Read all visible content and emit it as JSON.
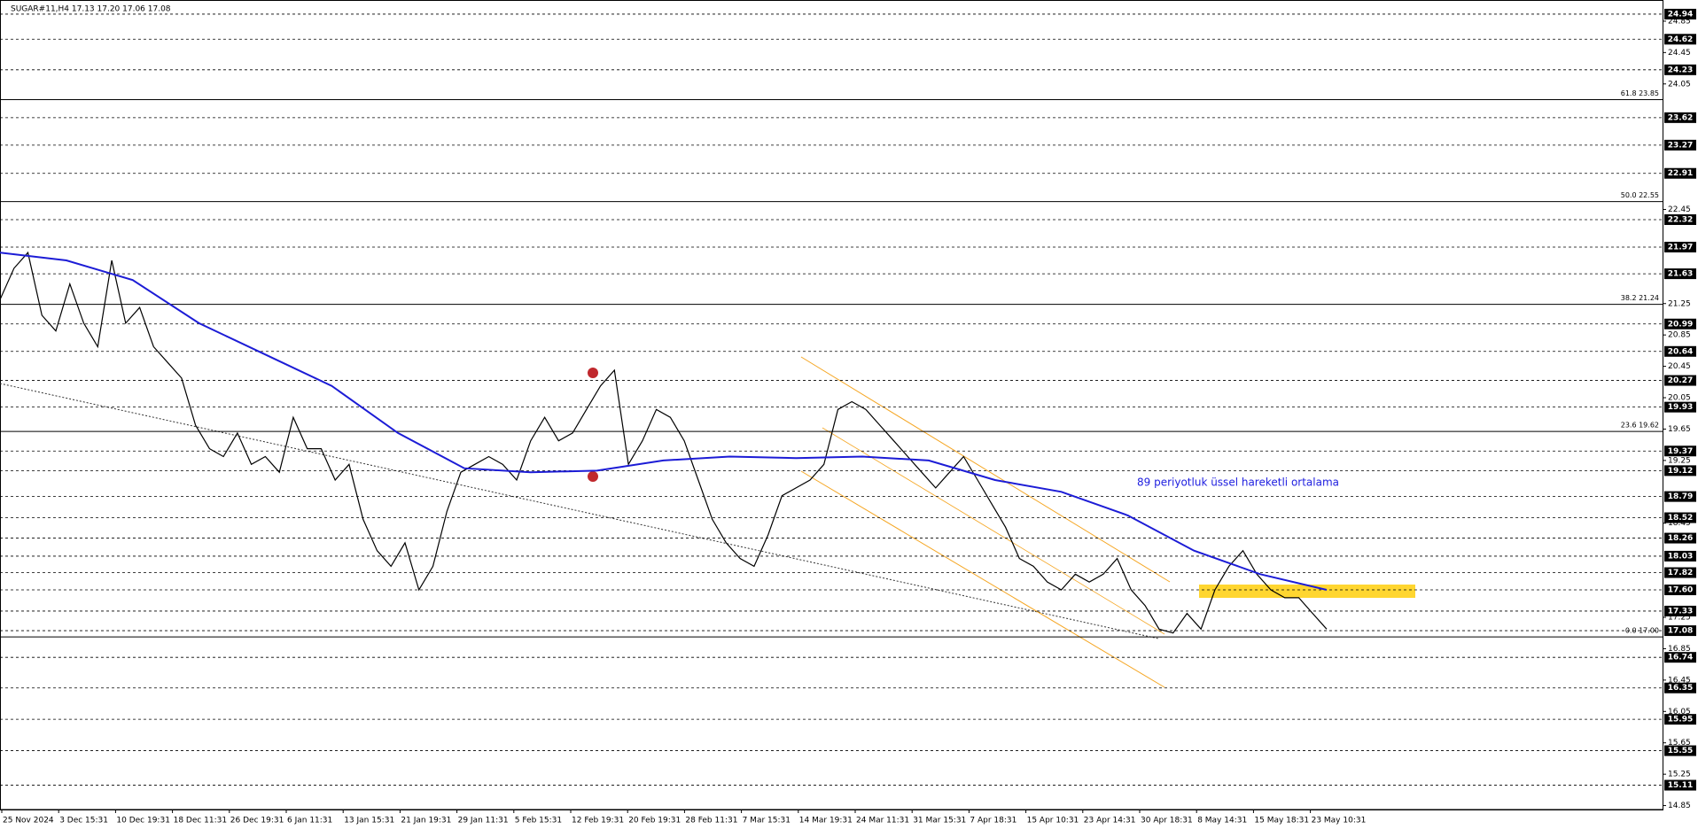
{
  "chart_data": {
    "type": "line",
    "title": "SUGAR#11,H4  17.13 17.20 17.06 17.08",
    "annotation": "89 periyotluk üssel hareketli ortalama",
    "ylim": [
      14.8,
      25.12
    ],
    "yticks": [
      24.85,
      24.45,
      24.05,
      22.45,
      21.25,
      20.85,
      20.45,
      20.05,
      19.65,
      19.25,
      18.45,
      17.25,
      16.85,
      16.45,
      16.05,
      15.65,
      15.25,
      14.85
    ],
    "levels": [
      24.94,
      24.62,
      24.23,
      23.62,
      23.27,
      22.91,
      22.32,
      21.97,
      21.63,
      20.99,
      20.64,
      20.27,
      19.93,
      19.37,
      19.12,
      18.79,
      18.52,
      18.26,
      18.03,
      17.82,
      {
        "value": 17.6,
        "label": "17.60"
      },
      17.33,
      17.08,
      16.74,
      16.35,
      15.95,
      15.55,
      15.11
    ],
    "fib_levels": [
      {
        "value": 23.85,
        "label": "61.8 23.85"
      },
      {
        "value": 22.55,
        "label": "50.0 22.55"
      },
      {
        "value": 21.24,
        "label": "38.2 21.24"
      },
      {
        "value": 19.62,
        "label": "23.6 19.62"
      },
      {
        "value": 17.0,
        "label": "0.0 17.00"
      }
    ],
    "x_labels": [
      "25 Nov 2024",
      "3 Dec 15:31",
      "10 Dec 19:31",
      "18 Dec 11:31",
      "26 Dec 19:31",
      "6 Jan 11:31",
      "13 Jan 15:31",
      "21 Jan 19:31",
      "29 Jan 11:31",
      "5 Feb 15:31",
      "12 Feb 19:31",
      "20 Feb 19:31",
      "28 Feb 11:31",
      "7 Mar 15:31",
      "14 Mar 19:31",
      "24 Mar 11:31",
      "31 Mar 15:31",
      "7 Apr 18:31",
      "15 Apr 10:31",
      "23 Apr 14:31",
      "30 Apr 18:31",
      "8 May 14:31",
      "15 May 18:31",
      "23 May 10:31"
    ],
    "series": [
      {
        "color": "#000000",
        "values": [
          21.3,
          21.7,
          21.9,
          21.1,
          20.9,
          21.5,
          21.0,
          20.7,
          21.8,
          21.0,
          21.2,
          20.7,
          20.5,
          20.3,
          19.7,
          19.4,
          19.3,
          19.6,
          19.2,
          19.3,
          19.1,
          19.8,
          19.4,
          19.4,
          19.0,
          19.2,
          18.5,
          18.1,
          17.9,
          18.2,
          17.6,
          17.9,
          18.6,
          19.1,
          19.2,
          19.3,
          19.2,
          19.0,
          19.5,
          19.8,
          19.5,
          19.6,
          19.9,
          20.2,
          20.4,
          19.2,
          19.5,
          19.9,
          19.8,
          19.5,
          19.0,
          18.5,
          18.2,
          18.0,
          17.9,
          18.3,
          18.8,
          18.9,
          19.0,
          19.2,
          19.9,
          20.0,
          19.9,
          19.7,
          19.5,
          19.3,
          19.1,
          18.9,
          19.1,
          19.3,
          19.0,
          18.7,
          18.4,
          18.0,
          17.9,
          17.7,
          17.6,
          17.8,
          17.7,
          17.8,
          18.0,
          17.6,
          17.4,
          17.1,
          17.05,
          17.3,
          17.1,
          17.6,
          17.9,
          18.1,
          17.8,
          17.6,
          17.5,
          17.5,
          17.3,
          17.1
        ]
      },
      {
        "color": "#1c1cd6",
        "values": [
          21.9,
          21.8,
          21.55,
          21.0,
          20.6,
          20.2,
          19.6,
          19.15,
          19.1,
          19.12,
          19.25,
          19.3,
          19.28,
          19.3,
          19.25,
          19.0,
          18.85,
          18.55,
          18.1,
          17.8,
          17.6
        ]
      }
    ]
  }
}
